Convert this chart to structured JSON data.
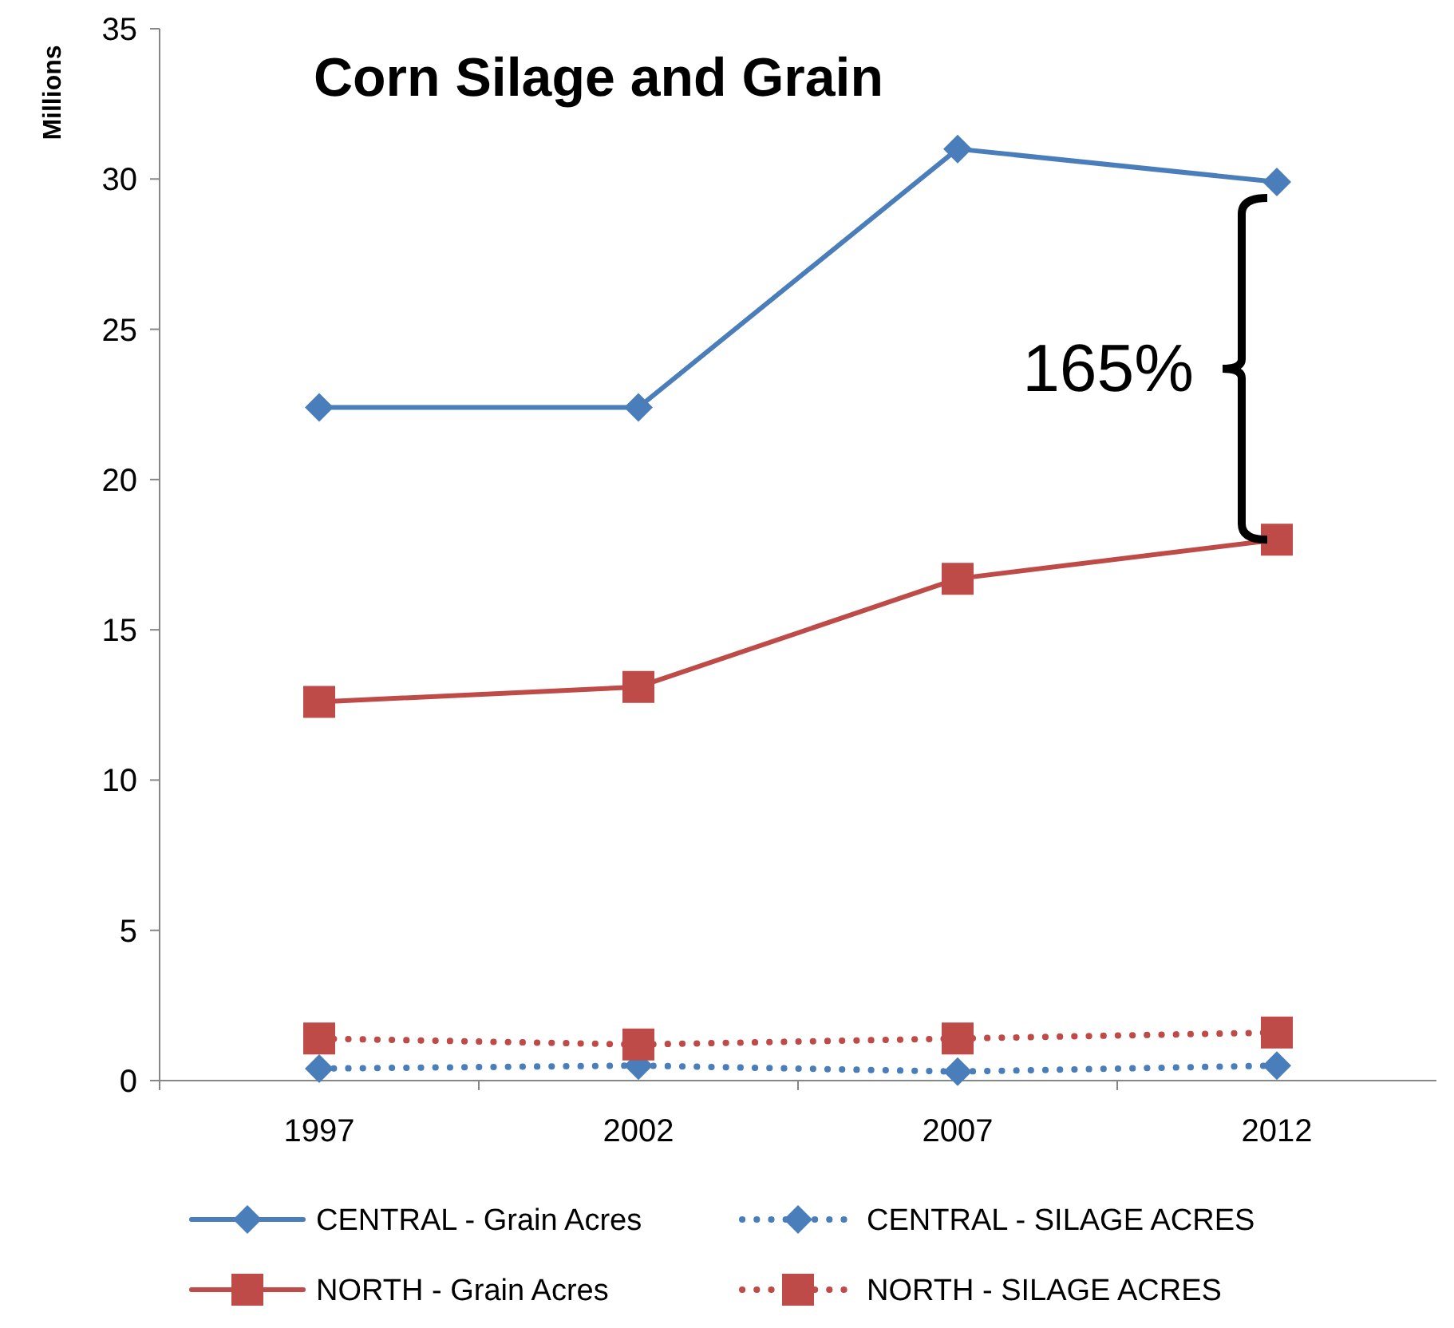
{
  "chart_data": {
    "type": "line",
    "title": "Corn Silage and Grain",
    "ylabel": "Millions",
    "categories": [
      "1997",
      "2002",
      "2007",
      "2012"
    ],
    "series": [
      {
        "name": "CENTRAL - Grain Acres",
        "color": "#4a7ebb",
        "values": [
          22.4,
          22.4,
          31.0,
          29.9
        ],
        "marker": "diamond",
        "line_style": "solid"
      },
      {
        "name": "CENTRAL - SILAGE ACRES",
        "color": "#4a7ebb",
        "values": [
          0.4,
          0.5,
          0.3,
          0.5
        ],
        "marker": "diamond",
        "line_style": "dotted"
      },
      {
        "name": "NORTH - Grain Acres",
        "color": "#be4b48",
        "values": [
          12.6,
          13.1,
          16.7,
          18.0
        ],
        "marker": "square",
        "line_style": "solid"
      },
      {
        "name": "NORTH - SILAGE ACRES",
        "color": "#be4b48",
        "values": [
          1.4,
          1.2,
          1.4,
          1.6
        ],
        "marker": "square",
        "line_style": "dotted"
      }
    ],
    "ylim": [
      0,
      35
    ],
    "yticks": [
      0,
      5,
      10,
      15,
      20,
      25,
      30,
      35
    ],
    "grid": false,
    "legend": "bottom",
    "annotations": [
      "165%"
    ]
  }
}
